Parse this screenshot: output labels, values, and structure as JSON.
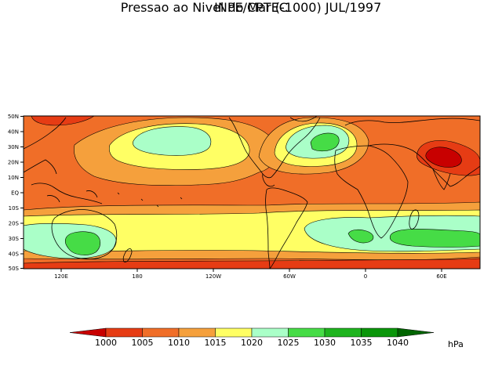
{
  "header": {
    "title": "INPE/CPTEC",
    "subtitle": "Pressao ao Nivel do Mar (-1000) JUL/1997"
  },
  "map": {
    "lat_labels": [
      "50N",
      "40N",
      "30N",
      "20N",
      "10N",
      "EQ",
      "10S",
      "20S",
      "30S",
      "40S",
      "50S"
    ],
    "lon_labels": [
      "120E",
      "180",
      "120W",
      "60W",
      "0",
      "60E"
    ]
  },
  "colorbar": {
    "labels": [
      "1000",
      "1005",
      "1010",
      "1015",
      "1020",
      "1025",
      "1030",
      "1035",
      "1040"
    ],
    "unit": "hPa",
    "colors": [
      "#c80000",
      "#e63c14",
      "#f06e28",
      "#f5a03c",
      "#ffff64",
      "#aaffc8",
      "#46dc46",
      "#1eb41e",
      "#0a960a",
      "#006400"
    ]
  },
  "colors": {
    "land_outline": "#000000",
    "contour": "#000000",
    "background": "#ffffff"
  }
}
